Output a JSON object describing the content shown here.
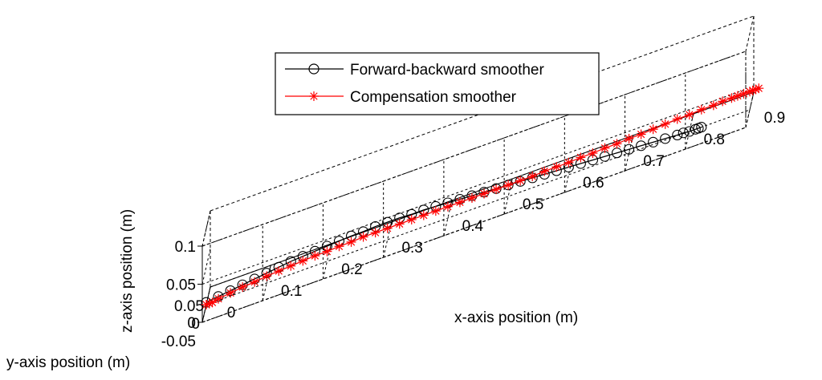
{
  "chart_data": {
    "type": "line",
    "projection": "3d",
    "title": "",
    "xlabel": "x-axis position (m)",
    "ylabel": "y-axis position (m)",
    "zlabel": "z-axis position (m)",
    "xlim": [
      0,
      0.9
    ],
    "ylim": [
      -0.05,
      0.05
    ],
    "zlim": [
      0,
      0.1
    ],
    "x_ticks": [
      "0",
      "0.1",
      "0.2",
      "0.3",
      "0.4",
      "0.5",
      "0.6",
      "0.7",
      "0.8",
      "0.9"
    ],
    "y_ticks": [
      "-0.05",
      "0",
      "0.05"
    ],
    "z_ticks": [
      "0",
      "0.05",
      "0.1"
    ],
    "grid": true,
    "legend_position": "top-center",
    "series": [
      {
        "name": "Forward-backward smoother",
        "color": "#000000",
        "marker": "circle",
        "x": [
          0.0,
          0.02,
          0.04,
          0.06,
          0.08,
          0.1,
          0.12,
          0.14,
          0.16,
          0.18,
          0.2,
          0.22,
          0.24,
          0.26,
          0.28,
          0.3,
          0.32,
          0.34,
          0.36,
          0.38,
          0.4,
          0.42,
          0.44,
          0.46,
          0.48,
          0.5,
          0.52,
          0.54,
          0.56,
          0.58,
          0.6,
          0.62,
          0.64,
          0.66,
          0.68,
          0.7,
          0.72,
          0.74,
          0.76,
          0.78,
          0.79,
          0.8,
          0.81,
          0.815,
          0.82
        ],
        "y": [
          0.0,
          0.0,
          0.0,
          0.0,
          0.0,
          0.0,
          0.0,
          0.0,
          0.0,
          0.0,
          0.0,
          0.0,
          0.0,
          0.0,
          0.0,
          0.0,
          0.0,
          0.0,
          0.0,
          0.0,
          0.0,
          0.0,
          0.0,
          0.0,
          0.0,
          0.0,
          0.0,
          0.0,
          0.0,
          0.0,
          0.0,
          0.0,
          0.0,
          0.0,
          0.0,
          0.0,
          0.0,
          0.0,
          0.0,
          0.0,
          0.0,
          0.0,
          0.0,
          0.0,
          0.0
        ],
        "z": [
          0.003,
          0.005,
          0.007,
          0.009,
          0.011,
          0.013,
          0.015,
          0.017,
          0.018,
          0.019,
          0.02,
          0.021,
          0.022,
          0.022,
          0.023,
          0.023,
          0.023,
          0.022,
          0.022,
          0.021,
          0.02,
          0.019,
          0.018,
          0.017,
          0.016,
          0.015,
          0.014,
          0.013,
          0.012,
          0.011,
          0.01,
          0.009,
          0.008,
          0.007,
          0.006,
          0.005,
          0.004,
          0.003,
          0.002,
          0.001,
          0.001,
          0.0,
          0.0,
          0.0,
          0.0
        ]
      },
      {
        "name": "Compensation smoother",
        "color": "#ff0000",
        "marker": "asterisk",
        "x": [
          0.0,
          0.005,
          0.01,
          0.02,
          0.04,
          0.06,
          0.08,
          0.1,
          0.12,
          0.14,
          0.16,
          0.18,
          0.2,
          0.22,
          0.24,
          0.26,
          0.28,
          0.3,
          0.32,
          0.34,
          0.36,
          0.38,
          0.4,
          0.42,
          0.44,
          0.46,
          0.48,
          0.5,
          0.52,
          0.54,
          0.56,
          0.58,
          0.6,
          0.62,
          0.64,
          0.66,
          0.68,
          0.7,
          0.72,
          0.74,
          0.76,
          0.78,
          0.8,
          0.82,
          0.84,
          0.855,
          0.87,
          0.88,
          0.89,
          0.9,
          0.905,
          0.91,
          0.915
        ],
        "y": [
          0.0,
          0.0,
          0.0,
          0.0,
          0.0,
          0.0,
          0.0,
          0.0,
          0.0,
          0.0,
          0.0,
          0.0,
          0.0,
          0.0,
          0.0,
          0.0,
          0.0,
          0.0,
          0.0,
          0.0,
          0.0,
          0.0,
          0.0,
          0.0,
          0.0,
          0.0,
          0.0,
          0.0,
          0.0,
          0.0,
          0.0,
          0.0,
          0.0,
          0.0,
          0.0,
          0.0,
          0.0,
          0.0,
          0.0,
          0.0,
          0.0,
          0.0,
          0.0,
          0.0,
          0.0,
          0.0,
          0.0,
          0.0,
          0.0,
          0.0,
          0.0,
          0.0,
          0.0
        ],
        "z": [
          0.0,
          0.0,
          0.0,
          0.002,
          0.004,
          0.006,
          0.007,
          0.009,
          0.01,
          0.011,
          0.012,
          0.013,
          0.013,
          0.014,
          0.014,
          0.015,
          0.015,
          0.015,
          0.015,
          0.015,
          0.015,
          0.015,
          0.015,
          0.015,
          0.015,
          0.015,
          0.015,
          0.015,
          0.015,
          0.015,
          0.016,
          0.016,
          0.016,
          0.017,
          0.017,
          0.018,
          0.018,
          0.019,
          0.019,
          0.02,
          0.021,
          0.022,
          0.022,
          0.023,
          0.023,
          0.024,
          0.024,
          0.024,
          0.024,
          0.024,
          0.024,
          0.024,
          0.024
        ]
      }
    ]
  }
}
